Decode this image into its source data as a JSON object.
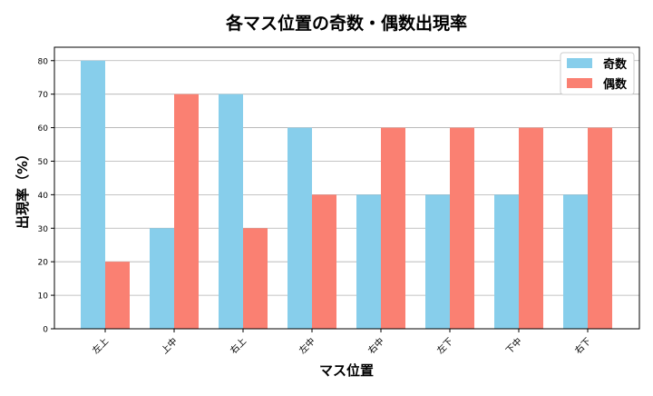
{
  "chart_data": {
    "type": "bar",
    "title": "各マス位置の奇数・偶数出現率",
    "xlabel": "マス位置",
    "ylabel": "出現率（%）",
    "categories": [
      "左上",
      "上中",
      "右上",
      "左中",
      "右中",
      "左下",
      "下中",
      "右下"
    ],
    "series": [
      {
        "name": "奇数",
        "color": "#87CEEB",
        "values": [
          80,
          30,
          70,
          60,
          40,
          40,
          40,
          40
        ]
      },
      {
        "name": "偶数",
        "color": "#FA8072",
        "values": [
          20,
          70,
          30,
          40,
          60,
          60,
          60,
          60
        ]
      }
    ],
    "ylim": [
      0,
      84
    ],
    "yticks": [
      0,
      10,
      20,
      30,
      40,
      50,
      60,
      70,
      80
    ],
    "grid": "y",
    "legend": "top-right"
  }
}
